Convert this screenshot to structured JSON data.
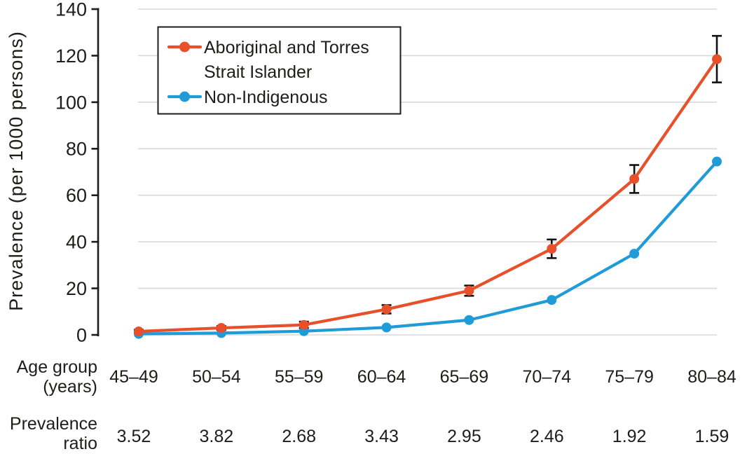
{
  "colors": {
    "indigenous": "#e8502b",
    "non_indigenous": "#1f9cd8",
    "grid": "#d9d9d9",
    "ink": "#1d1d1b",
    "error_bar": "#111111",
    "background": "#ffffff"
  },
  "chart_data": {
    "type": "line",
    "title": "",
    "ylabel": "Prevalence (per 1000 persons)",
    "xlabel": "Age group (years)",
    "age_header_line1": "Age group",
    "age_header_line2": "(years)",
    "ratio_header_line1": "Prevalence",
    "ratio_header_line2": "ratio",
    "categories": [
      "45–49",
      "50–54",
      "55–59",
      "60–64",
      "65–69",
      "70–74",
      "75–79",
      "80–84"
    ],
    "series": [
      {
        "name": "Aboriginal and Torres Strait Islander",
        "legend_lines": [
          "Aboriginal and Torres",
          "Strait Islander"
        ],
        "color": "#e8502b",
        "values": [
          1.5,
          3.0,
          4.3,
          11.0,
          19.0,
          37.0,
          67.0,
          118.5
        ],
        "error_half_width": [
          0.7,
          0.8,
          1.4,
          1.8,
          2.2,
          4.0,
          6.0,
          10.0
        ]
      },
      {
        "name": "Non-Indigenous",
        "legend_lines": [
          "Non-Indigenous"
        ],
        "color": "#1f9cd8",
        "values": [
          0.43,
          0.79,
          1.6,
          3.2,
          6.4,
          15.0,
          34.9,
          74.5
        ],
        "error_half_width": null
      }
    ],
    "prevalence_ratio": [
      "3.52",
      "3.82",
      "2.68",
      "3.43",
      "2.95",
      "2.46",
      "1.92",
      "1.59"
    ],
    "ylim": [
      0,
      140
    ],
    "yticks": [
      0,
      20,
      40,
      60,
      80,
      100,
      120,
      140
    ],
    "grid": true,
    "legend_position": "top-left-inside"
  }
}
